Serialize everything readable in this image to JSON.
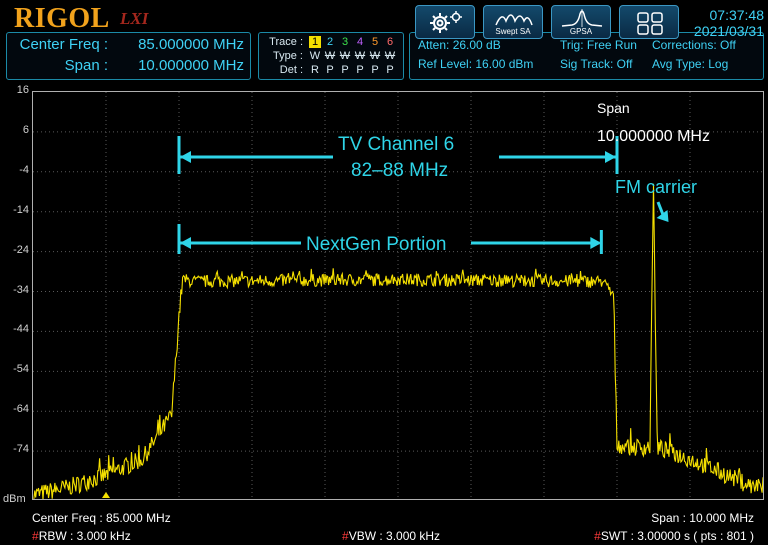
{
  "brand": {
    "name": "RIGOL",
    "sub": "LXI"
  },
  "config": {
    "center_label": "Center Freq :",
    "center_value": "85.000000 MHz",
    "span_label": "Span :",
    "span_value": "10.000000 MHz"
  },
  "trace": {
    "trace_label": "Trace :",
    "type_label": "Type :",
    "det_label": "Det :",
    "numbers": [
      "1",
      "2",
      "3",
      "4",
      "5",
      "6"
    ],
    "number_colors": [
      "#000000",
      "#3fd2f5",
      "#3ee04d",
      "#c060ff",
      "#ff9a2c",
      "#ff6a6a"
    ],
    "types": [
      "W",
      "W",
      "W",
      "W",
      "W",
      "W"
    ],
    "dets": [
      "R",
      "P",
      "P",
      "P",
      "P",
      "P"
    ]
  },
  "settings": {
    "atten": "Atten: 26.00 dB",
    "ref": "Ref Level: 16.00 dBm",
    "trig": "Trig: Free Run",
    "sig_track": "Sig Track: Off",
    "corrections": "Corrections: Off",
    "avg_type": "Avg Type: Log"
  },
  "toolbar": {
    "settings_icon": "gear-icon",
    "swept_label": "Swept SA",
    "gpsa_label": "GPSA",
    "layout_icon": "grid-layout-icon"
  },
  "clock": {
    "time": "07:37:48",
    "date": "2021/03/31"
  },
  "y_unit": "dBm",
  "chart_data": {
    "type": "line",
    "x_range_mhz": [
      80,
      90
    ],
    "ylim": [
      -86,
      16
    ],
    "yticks": [
      "16",
      "6",
      "-4",
      "-14",
      "-24",
      "-34",
      "-44",
      "-54",
      "-64",
      "-74"
    ],
    "trace_color": "#f5e000",
    "grid": true,
    "series": [
      {
        "name": "",
        "x": [
          80.0,
          80.5,
          81.0,
          81.5,
          81.9,
          82.0,
          82.05,
          82.2,
          85.0,
          87.8,
          87.95,
          88.0,
          88.1,
          88.2,
          88.45,
          88.5,
          88.55,
          88.7,
          89.0,
          89.5,
          90.0
        ],
        "y": [
          -85,
          -83,
          -80,
          -76,
          -65,
          -40,
          -31,
          -31.5,
          -31,
          -31.5,
          -35,
          -72,
          -73,
          -73,
          -73,
          -7,
          -73,
          -74,
          -76,
          -80,
          -84
        ]
      }
    ],
    "marker_freq_mhz": 81.0,
    "annotations": {
      "channel_label": "TV Channel 6",
      "channel_range": "82–88 MHz",
      "nextgen": "NextGen Portion",
      "span_label": "Span",
      "span_value": "10.000000 MHz",
      "carrier": "FM carrier"
    },
    "annotation_color": "#2fd5e8"
  },
  "footer": {
    "center": "Center Freq : 85.000 MHz",
    "span": "Span : 10.000 MHz",
    "rbw": "RBW : 3.000 kHz",
    "vbw": "VBW : 3.000 kHz",
    "swt": "SWT : 3.00000 s ( pts : 801 )"
  }
}
